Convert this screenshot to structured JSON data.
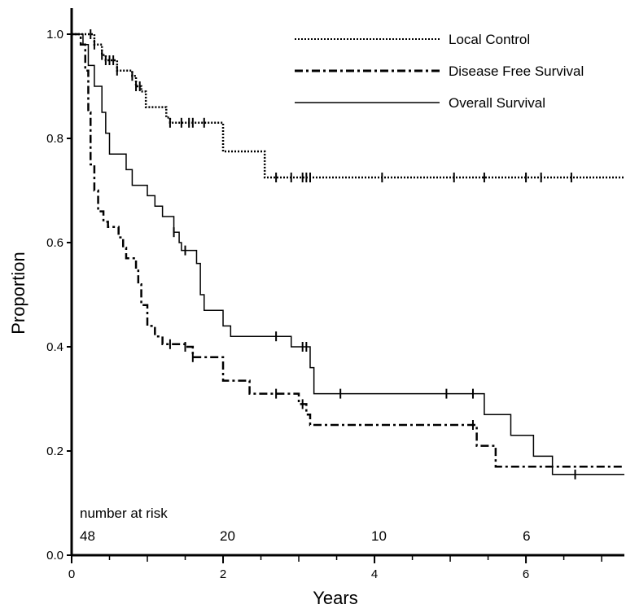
{
  "chart_data": {
    "type": "line",
    "title": "",
    "xlabel": "Years",
    "ylabel": "Proportion",
    "xlim": [
      0,
      7.3
    ],
    "ylim": [
      0,
      1.05
    ],
    "x_ticks": [
      0,
      2,
      4,
      6
    ],
    "x_tick_labels": [
      "0",
      "2",
      "4",
      "6"
    ],
    "y_ticks": [
      0.0,
      0.2,
      0.4,
      0.6,
      0.8,
      1.0
    ],
    "y_tick_labels": [
      "0.0",
      "0.2",
      "0.4",
      "0.6",
      "0.8",
      "1.0"
    ],
    "grid": false,
    "legend_position": "top-right",
    "risk_table": {
      "label": "number at risk",
      "x": [
        0,
        2,
        4,
        6
      ],
      "values": [
        "48",
        "20",
        "10",
        "6"
      ]
    },
    "series": [
      {
        "name": "Local Control",
        "style": "dotted",
        "steps": [
          [
            0,
            1.0
          ],
          [
            0.3,
            0.98
          ],
          [
            0.4,
            0.96
          ],
          [
            0.45,
            0.95
          ],
          [
            0.6,
            0.93
          ],
          [
            0.8,
            0.92
          ],
          [
            0.85,
            0.9
          ],
          [
            0.92,
            0.89
          ],
          [
            0.98,
            0.86
          ],
          [
            1.25,
            0.84
          ],
          [
            1.3,
            0.83
          ],
          [
            2.0,
            0.83
          ],
          [
            2.0,
            0.775
          ],
          [
            2.55,
            0.775
          ],
          [
            2.55,
            0.725
          ],
          [
            7.3,
            0.725
          ]
        ],
        "censor_x": [
          0.25,
          0.3,
          0.4,
          0.45,
          0.5,
          0.55,
          0.6,
          0.8,
          0.85,
          0.9,
          1.3,
          1.45,
          1.55,
          1.6,
          1.75,
          2.7,
          2.9,
          3.05,
          3.1,
          3.15,
          4.1,
          5.05,
          5.45,
          6.0,
          6.2,
          6.6
        ]
      },
      {
        "name": "Disease Free Survival",
        "style": "dashdot",
        "steps": [
          [
            0,
            1.0
          ],
          [
            0.12,
            0.98
          ],
          [
            0.18,
            0.93
          ],
          [
            0.22,
            0.85
          ],
          [
            0.25,
            0.75
          ],
          [
            0.3,
            0.7
          ],
          [
            0.35,
            0.66
          ],
          [
            0.42,
            0.64
          ],
          [
            0.48,
            0.63
          ],
          [
            0.62,
            0.61
          ],
          [
            0.68,
            0.59
          ],
          [
            0.72,
            0.57
          ],
          [
            0.85,
            0.55
          ],
          [
            0.88,
            0.52
          ],
          [
            0.92,
            0.48
          ],
          [
            1.0,
            0.44
          ],
          [
            1.1,
            0.42
          ],
          [
            1.2,
            0.405
          ],
          [
            1.5,
            0.4
          ],
          [
            1.6,
            0.38
          ],
          [
            2.0,
            0.38
          ],
          [
            2.0,
            0.335
          ],
          [
            2.35,
            0.335
          ],
          [
            2.35,
            0.31
          ],
          [
            3.0,
            0.31
          ],
          [
            3.0,
            0.29
          ],
          [
            3.1,
            0.27
          ],
          [
            3.15,
            0.25
          ],
          [
            5.35,
            0.25
          ],
          [
            5.35,
            0.21
          ],
          [
            5.6,
            0.21
          ],
          [
            5.6,
            0.17
          ],
          [
            7.3,
            0.17
          ]
        ],
        "censor_x": [
          1.3,
          1.5,
          1.6,
          2.7,
          3.05,
          5.3
        ]
      },
      {
        "name": "Overall Survival",
        "style": "solid",
        "steps": [
          [
            0,
            1.0
          ],
          [
            0.15,
            0.98
          ],
          [
            0.22,
            0.94
          ],
          [
            0.3,
            0.9
          ],
          [
            0.4,
            0.85
          ],
          [
            0.45,
            0.81
          ],
          [
            0.5,
            0.77
          ],
          [
            0.7,
            0.77
          ],
          [
            0.72,
            0.74
          ],
          [
            0.8,
            0.74
          ],
          [
            0.8,
            0.71
          ],
          [
            1.0,
            0.71
          ],
          [
            1.0,
            0.69
          ],
          [
            1.1,
            0.67
          ],
          [
            1.2,
            0.65
          ],
          [
            1.35,
            0.62
          ],
          [
            1.42,
            0.6
          ],
          [
            1.45,
            0.585
          ],
          [
            1.65,
            0.585
          ],
          [
            1.65,
            0.56
          ],
          [
            1.7,
            0.5
          ],
          [
            1.75,
            0.47
          ],
          [
            2.0,
            0.47
          ],
          [
            2.0,
            0.44
          ],
          [
            2.1,
            0.42
          ],
          [
            2.7,
            0.42
          ],
          [
            2.9,
            0.4
          ],
          [
            3.15,
            0.4
          ],
          [
            3.15,
            0.36
          ],
          [
            3.2,
            0.31
          ],
          [
            5.45,
            0.31
          ],
          [
            5.45,
            0.27
          ],
          [
            5.8,
            0.27
          ],
          [
            5.8,
            0.23
          ],
          [
            6.1,
            0.23
          ],
          [
            6.1,
            0.19
          ],
          [
            6.35,
            0.19
          ],
          [
            6.35,
            0.155
          ],
          [
            7.3,
            0.155
          ]
        ],
        "censor_x": [
          1.35,
          1.5,
          2.7,
          3.05,
          3.1,
          3.55,
          4.95,
          5.3,
          6.65
        ]
      }
    ]
  }
}
